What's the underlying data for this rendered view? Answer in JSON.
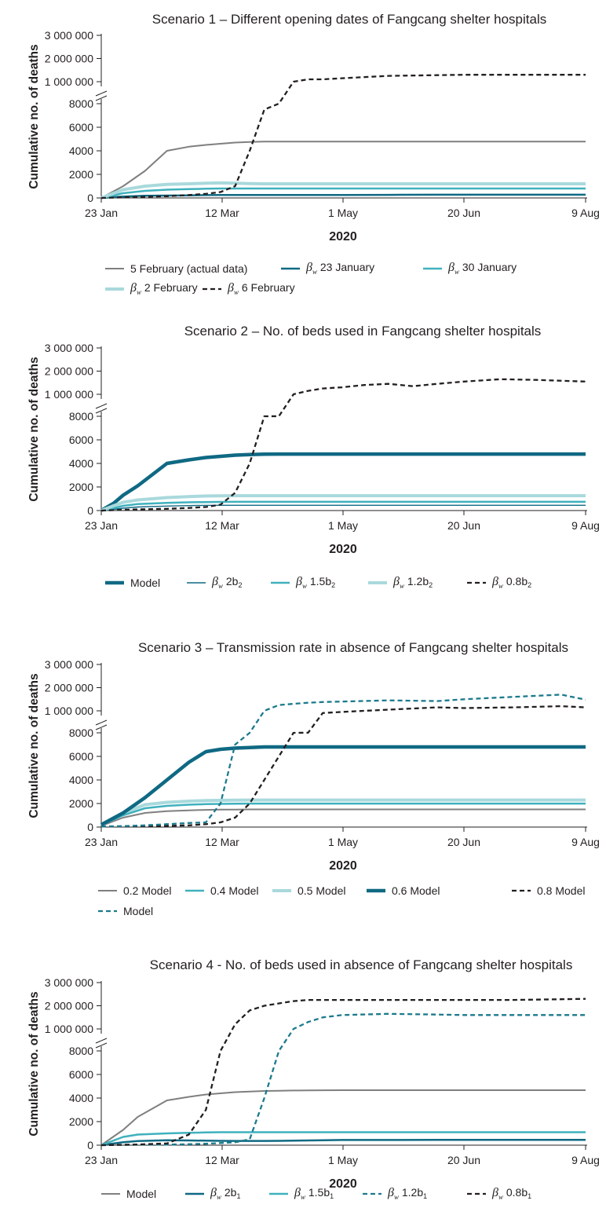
{
  "chart_data": [
    {
      "type": "line",
      "title": "Scenario 1 – Different opening dates of Fangcang shelter hospitals",
      "xlabel": "2020",
      "ylabel": "Cumulative no. of deaths",
      "x_ticks": [
        "23 Jan",
        "12 Mar",
        "1 May",
        "20 Jun",
        "9 Aug"
      ],
      "y_ticks_lower": [
        "0",
        "2000",
        "4000",
        "6000",
        "8000"
      ],
      "y_ticks_upper": [
        "1 000 000",
        "2 000 000",
        "3 000 000"
      ],
      "x_dates": [
        "2020-01-23",
        "2020-02-01",
        "2020-02-10",
        "2020-02-19",
        "2020-02-28",
        "2020-03-06",
        "2020-03-12",
        "2020-03-18",
        "2020-03-24",
        "2020-03-30",
        "2020-04-05",
        "2020-04-11",
        "2020-04-17",
        "2020-04-23",
        "2020-05-01",
        "2020-05-20",
        "2020-06-09",
        "2020-06-20",
        "2020-07-10",
        "2020-07-30",
        "2020-08-09"
      ],
      "series": [
        {
          "label_pre": "",
          "label_post": "5 February (actual data)",
          "sub": "",
          "color": "#7f7f7f",
          "width": 2,
          "dash": "",
          "values": [
            0,
            1000,
            2300,
            4000,
            4350,
            4500,
            4600,
            4700,
            4750,
            4780,
            4790,
            4790,
            4790,
            4790,
            4790,
            4790,
            4790,
            4790,
            4790,
            4790,
            4790
          ]
        },
        {
          "label_pre": "",
          "label_post": "23 January",
          "sub": "w",
          "color": "#0f6983",
          "width": 2.5,
          "dash": "",
          "values": [
            0,
            120,
            180,
            200,
            220,
            240,
            250,
            250,
            250,
            250,
            250,
            250,
            250,
            250,
            250,
            260,
            270,
            270,
            270,
            270,
            270
          ]
        },
        {
          "label_pre": "",
          "label_post": "30 January",
          "sub": "w",
          "color": "#3fb1bd",
          "width": 2.5,
          "dash": "",
          "values": [
            0,
            400,
            600,
            700,
            750,
            780,
            800,
            800,
            800,
            800,
            800,
            800,
            800,
            800,
            800,
            800,
            800,
            800,
            800,
            800,
            800
          ]
        },
        {
          "label_pre": "",
          "label_post": "2 February",
          "sub": "w",
          "color": "#a9d9dc",
          "width": 4,
          "dash": "",
          "values": [
            0,
            700,
            1000,
            1150,
            1200,
            1250,
            1270,
            1250,
            1220,
            1200,
            1200,
            1200,
            1200,
            1200,
            1200,
            1200,
            1200,
            1200,
            1200,
            1200,
            1200
          ]
        },
        {
          "label_pre": "",
          "label_post": "6 February",
          "sub": "w",
          "color": "#231f20",
          "width": 2.3,
          "dash": "6 4",
          "values": [
            0,
            50,
            100,
            150,
            250,
            350,
            500,
            1000,
            4000,
            7500,
            10000,
            1000000,
            1100000,
            1100000,
            1150000,
            1250000,
            1280000,
            1300000,
            1300000,
            1300000,
            1300000
          ]
        }
      ]
    },
    {
      "type": "line",
      "title": "Scenario 2 – No. of beds used in Fangcang shelter hospitals",
      "xlabel": "2020",
      "ylabel": "Cumulative no. of deaths",
      "x_ticks": [
        "23 Jan",
        "12 Mar",
        "1 May",
        "20 Jun",
        "9 Aug"
      ],
      "y_ticks_lower": [
        "0",
        "2000",
        "4000",
        "6000",
        "8000"
      ],
      "y_ticks_upper": [
        "1 000 000",
        "2 000 000",
        "3 000 000"
      ],
      "x_dates": [
        "2020-01-23",
        "2020-01-28",
        "2020-02-01",
        "2020-02-07",
        "2020-02-19",
        "2020-02-28",
        "2020-03-06",
        "2020-03-12",
        "2020-03-18",
        "2020-03-24",
        "2020-03-30",
        "2020-04-05",
        "2020-04-11",
        "2020-04-17",
        "2020-04-23",
        "2020-05-01",
        "2020-05-10",
        "2020-05-20",
        "2020-05-30",
        "2020-06-09",
        "2020-06-20",
        "2020-07-05",
        "2020-07-20",
        "2020-08-09"
      ],
      "series": [
        {
          "label_pre": "Model",
          "label_post": "",
          "sub": "",
          "color": "#0f6983",
          "width": 4.5,
          "dash": "",
          "values": [
            0,
            600,
            1300,
            2100,
            4000,
            4300,
            4500,
            4600,
            4700,
            4750,
            4780,
            4790,
            4790,
            4790,
            4790,
            4790,
            4790,
            4790,
            4790,
            4790,
            4790,
            4790,
            4790,
            4790
          ]
        },
        {
          "label_pre": "",
          "label_post": "2b",
          "sub": "w",
          "color": "#0f6983",
          "width": 1.4,
          "dash": "",
          "values": [
            0,
            100,
            200,
            300,
            380,
            420,
            440,
            450,
            450,
            450,
            450,
            450,
            450,
            450,
            450,
            450,
            450,
            450,
            450,
            450,
            450,
            450,
            450,
            450
          ]
        },
        {
          "label_pre": "",
          "label_post": "1.5b",
          "sub": "w",
          "color": "#3fb1bd",
          "width": 2.5,
          "dash": "",
          "values": [
            0,
            200,
            400,
            550,
            650,
            700,
            720,
            730,
            740,
            740,
            740,
            740,
            740,
            740,
            740,
            740,
            740,
            740,
            740,
            740,
            740,
            740,
            740,
            740
          ]
        },
        {
          "label_pre": "",
          "label_post": "1.2b",
          "sub": "w",
          "color": "#a9d9dc",
          "width": 4,
          "dash": "",
          "values": [
            0,
            400,
            700,
            900,
            1100,
            1180,
            1230,
            1250,
            1260,
            1260,
            1260,
            1260,
            1260,
            1260,
            1260,
            1260,
            1260,
            1260,
            1260,
            1260,
            1260,
            1260,
            1260,
            1260
          ]
        },
        {
          "label_pre": "",
          "label_post": "0.8b",
          "sub": "w",
          "color": "#231f20",
          "width": 2.3,
          "dash": "6 4",
          "values": [
            0,
            30,
            60,
            100,
            150,
            220,
            300,
            500,
            1500,
            4000,
            8500,
            10000,
            1000000,
            1150000,
            1250000,
            1300000,
            1400000,
            1450000,
            1350000,
            1450000,
            1550000,
            1650000,
            1620000,
            1550000
          ]
        }
      ]
    },
    {
      "type": "line",
      "title": "Scenario 3 – Transmission rate in absence of Fangcang shelter hospitals",
      "xlabel": "2020",
      "ylabel": "Cumulative no. of deaths",
      "x_ticks": [
        "23 Jan",
        "12 Mar",
        "1 May",
        "20 Jun",
        "9 Aug"
      ],
      "y_ticks_lower": [
        "0",
        "2000",
        "4000",
        "6000",
        "8000"
      ],
      "y_ticks_upper": [
        "1 000 000",
        "2 000 000",
        "3 000 000"
      ],
      "x_dates": [
        "2020-01-23",
        "2020-02-01",
        "2020-02-10",
        "2020-02-19",
        "2020-02-28",
        "2020-03-06",
        "2020-03-12",
        "2020-03-18",
        "2020-03-24",
        "2020-03-30",
        "2020-04-05",
        "2020-04-11",
        "2020-04-17",
        "2020-04-23",
        "2020-05-01",
        "2020-05-20",
        "2020-06-09",
        "2020-06-20",
        "2020-07-10",
        "2020-07-30",
        "2020-08-09"
      ],
      "series": [
        {
          "label_pre": "0.2 Model",
          "label_post": "",
          "sub": "",
          "color": "#7f7f7f",
          "width": 2,
          "dash": "",
          "values": [
            100,
            800,
            1200,
            1350,
            1420,
            1460,
            1480,
            1490,
            1500,
            1500,
            1500,
            1500,
            1500,
            1500,
            1500,
            1500,
            1500,
            1500,
            1500,
            1500,
            1500
          ]
        },
        {
          "label_pre": "0.4 Model",
          "label_post": "",
          "sub": "",
          "color": "#3fb1bd",
          "width": 2.5,
          "dash": "",
          "values": [
            150,
            1000,
            1600,
            1800,
            1900,
            1950,
            1970,
            1980,
            1990,
            1990,
            1990,
            1990,
            1990,
            1990,
            1990,
            1990,
            1990,
            1990,
            1990,
            1990,
            1990
          ]
        },
        {
          "label_pre": "0.5 Model",
          "label_post": "",
          "sub": "",
          "color": "#a9d9dc",
          "width": 4,
          "dash": "",
          "values": [
            200,
            1200,
            1900,
            2100,
            2200,
            2250,
            2270,
            2280,
            2290,
            2290,
            2290,
            2290,
            2290,
            2290,
            2290,
            2290,
            2290,
            2290,
            2290,
            2290,
            2290
          ]
        },
        {
          "label_pre": "0.6 Model",
          "label_post": "",
          "sub": "",
          "color": "#0f6983",
          "width": 4.5,
          "dash": "",
          "values": [
            200,
            1200,
            2500,
            4000,
            5500,
            6400,
            6600,
            6700,
            6750,
            6800,
            6800,
            6800,
            6800,
            6800,
            6800,
            6800,
            6800,
            6800,
            6800,
            6800,
            6800
          ]
        },
        {
          "label_pre": "0.8 Model",
          "label_post": "",
          "sub": "",
          "color": "#231f20",
          "width": 2.3,
          "dash": "6 4",
          "values": [
            50,
            60,
            80,
            100,
            150,
            250,
            400,
            800,
            2000,
            4000,
            6000,
            8000,
            10000,
            900000,
            950000,
            1050000,
            1150000,
            1120000,
            1150000,
            1200000,
            1150000
          ]
        },
        {
          "label_pre": "Model",
          "label_post": "",
          "sub": "",
          "color": "#1c7a8c",
          "width": 2.3,
          "dash": "6 4",
          "values": [
            50,
            80,
            150,
            250,
            350,
            400,
            2000,
            7000,
            9500,
            1000000,
            1250000,
            1300000,
            1350000,
            1380000,
            1400000,
            1450000,
            1420000,
            1500000,
            1600000,
            1700000,
            1480000
          ]
        }
      ]
    },
    {
      "type": "line",
      "title": "Scenario 4 -  No. of beds used in absence of Fangcang shelter hospitals",
      "xlabel": "2020",
      "ylabel": "Cumulative no. of deaths",
      "x_ticks": [
        "23 Jan",
        "12 Mar",
        "1 May",
        "20 Jun",
        "9 Aug"
      ],
      "y_ticks_lower": [
        "0",
        "2000",
        "4000",
        "6000",
        "8000"
      ],
      "y_ticks_upper": [
        "1 000 000",
        "2 000 000",
        "3 000 000"
      ],
      "x_dates": [
        "2020-01-23",
        "2020-02-01",
        "2020-02-07",
        "2020-02-19",
        "2020-02-28",
        "2020-03-06",
        "2020-03-12",
        "2020-03-18",
        "2020-03-24",
        "2020-03-30",
        "2020-04-05",
        "2020-04-11",
        "2020-04-17",
        "2020-04-23",
        "2020-05-01",
        "2020-05-20",
        "2020-06-09",
        "2020-06-20",
        "2020-07-10",
        "2020-07-30",
        "2020-08-09"
      ],
      "series": [
        {
          "label_pre": "Model",
          "label_post": "",
          "sub": "",
          "color": "#7f7f7f",
          "width": 2,
          "dash": "",
          "values": [
            0,
            1300,
            2400,
            3800,
            4100,
            4300,
            4400,
            4500,
            4550,
            4600,
            4620,
            4640,
            4650,
            4660,
            4670,
            4670,
            4670,
            4670,
            4670,
            4670,
            4670
          ]
        },
        {
          "label_pre": "",
          "label_post": "2b",
          "sub": "w",
          "color": "#0f6983",
          "width": 2.5,
          "dash": "",
          "values": [
            0,
            250,
            350,
            420,
            400,
            380,
            370,
            360,
            360,
            360,
            370,
            380,
            400,
            420,
            440,
            440,
            450,
            450,
            450,
            450,
            450
          ]
        },
        {
          "label_pre": "",
          "label_post": "1.5b",
          "sub": "w",
          "color": "#3fb1bd",
          "width": 2.5,
          "dash": "",
          "values": [
            0,
            700,
            900,
            1000,
            1050,
            1080,
            1100,
            1100,
            1100,
            1100,
            1100,
            1100,
            1100,
            1100,
            1100,
            1100,
            1100,
            1100,
            1100,
            1100,
            1100
          ]
        },
        {
          "label_pre": "",
          "label_post": "1.2b",
          "sub": "w",
          "color": "#1c7a8c",
          "width": 2.3,
          "dash": "6 4",
          "values": [
            0,
            20,
            30,
            50,
            80,
            120,
            180,
            250,
            500,
            4000,
            8500,
            1000000,
            1300000,
            1500000,
            1600000,
            1650000,
            1620000,
            1600000,
            1600000,
            1600000,
            1600000
          ]
        },
        {
          "label_pre": "",
          "label_post": "0.8b",
          "sub": "w",
          "color": "#231f20",
          "width": 2.3,
          "dash": "6 4",
          "values": [
            0,
            30,
            60,
            150,
            900,
            3000,
            9000,
            1200000,
            1800000,
            2000000,
            2100000,
            2200000,
            2250000,
            2250000,
            2250000,
            2250000,
            2250000,
            2250000,
            2250000,
            2280000,
            2300000
          ]
        }
      ]
    }
  ],
  "legends": [
    {
      "rows": [
        [
          0,
          1,
          2
        ],
        [
          3,
          4
        ]
      ]
    },
    {
      "rows": [
        [
          0,
          1,
          2,
          3,
          4
        ]
      ]
    },
    {
      "rows": [
        [
          0,
          1,
          2,
          3,
          4
        ],
        [
          5
        ]
      ]
    },
    {
      "rows": [
        [
          0,
          1,
          2,
          3,
          4
        ]
      ]
    }
  ],
  "beta_symbol": "β",
  "break_mark": "//"
}
